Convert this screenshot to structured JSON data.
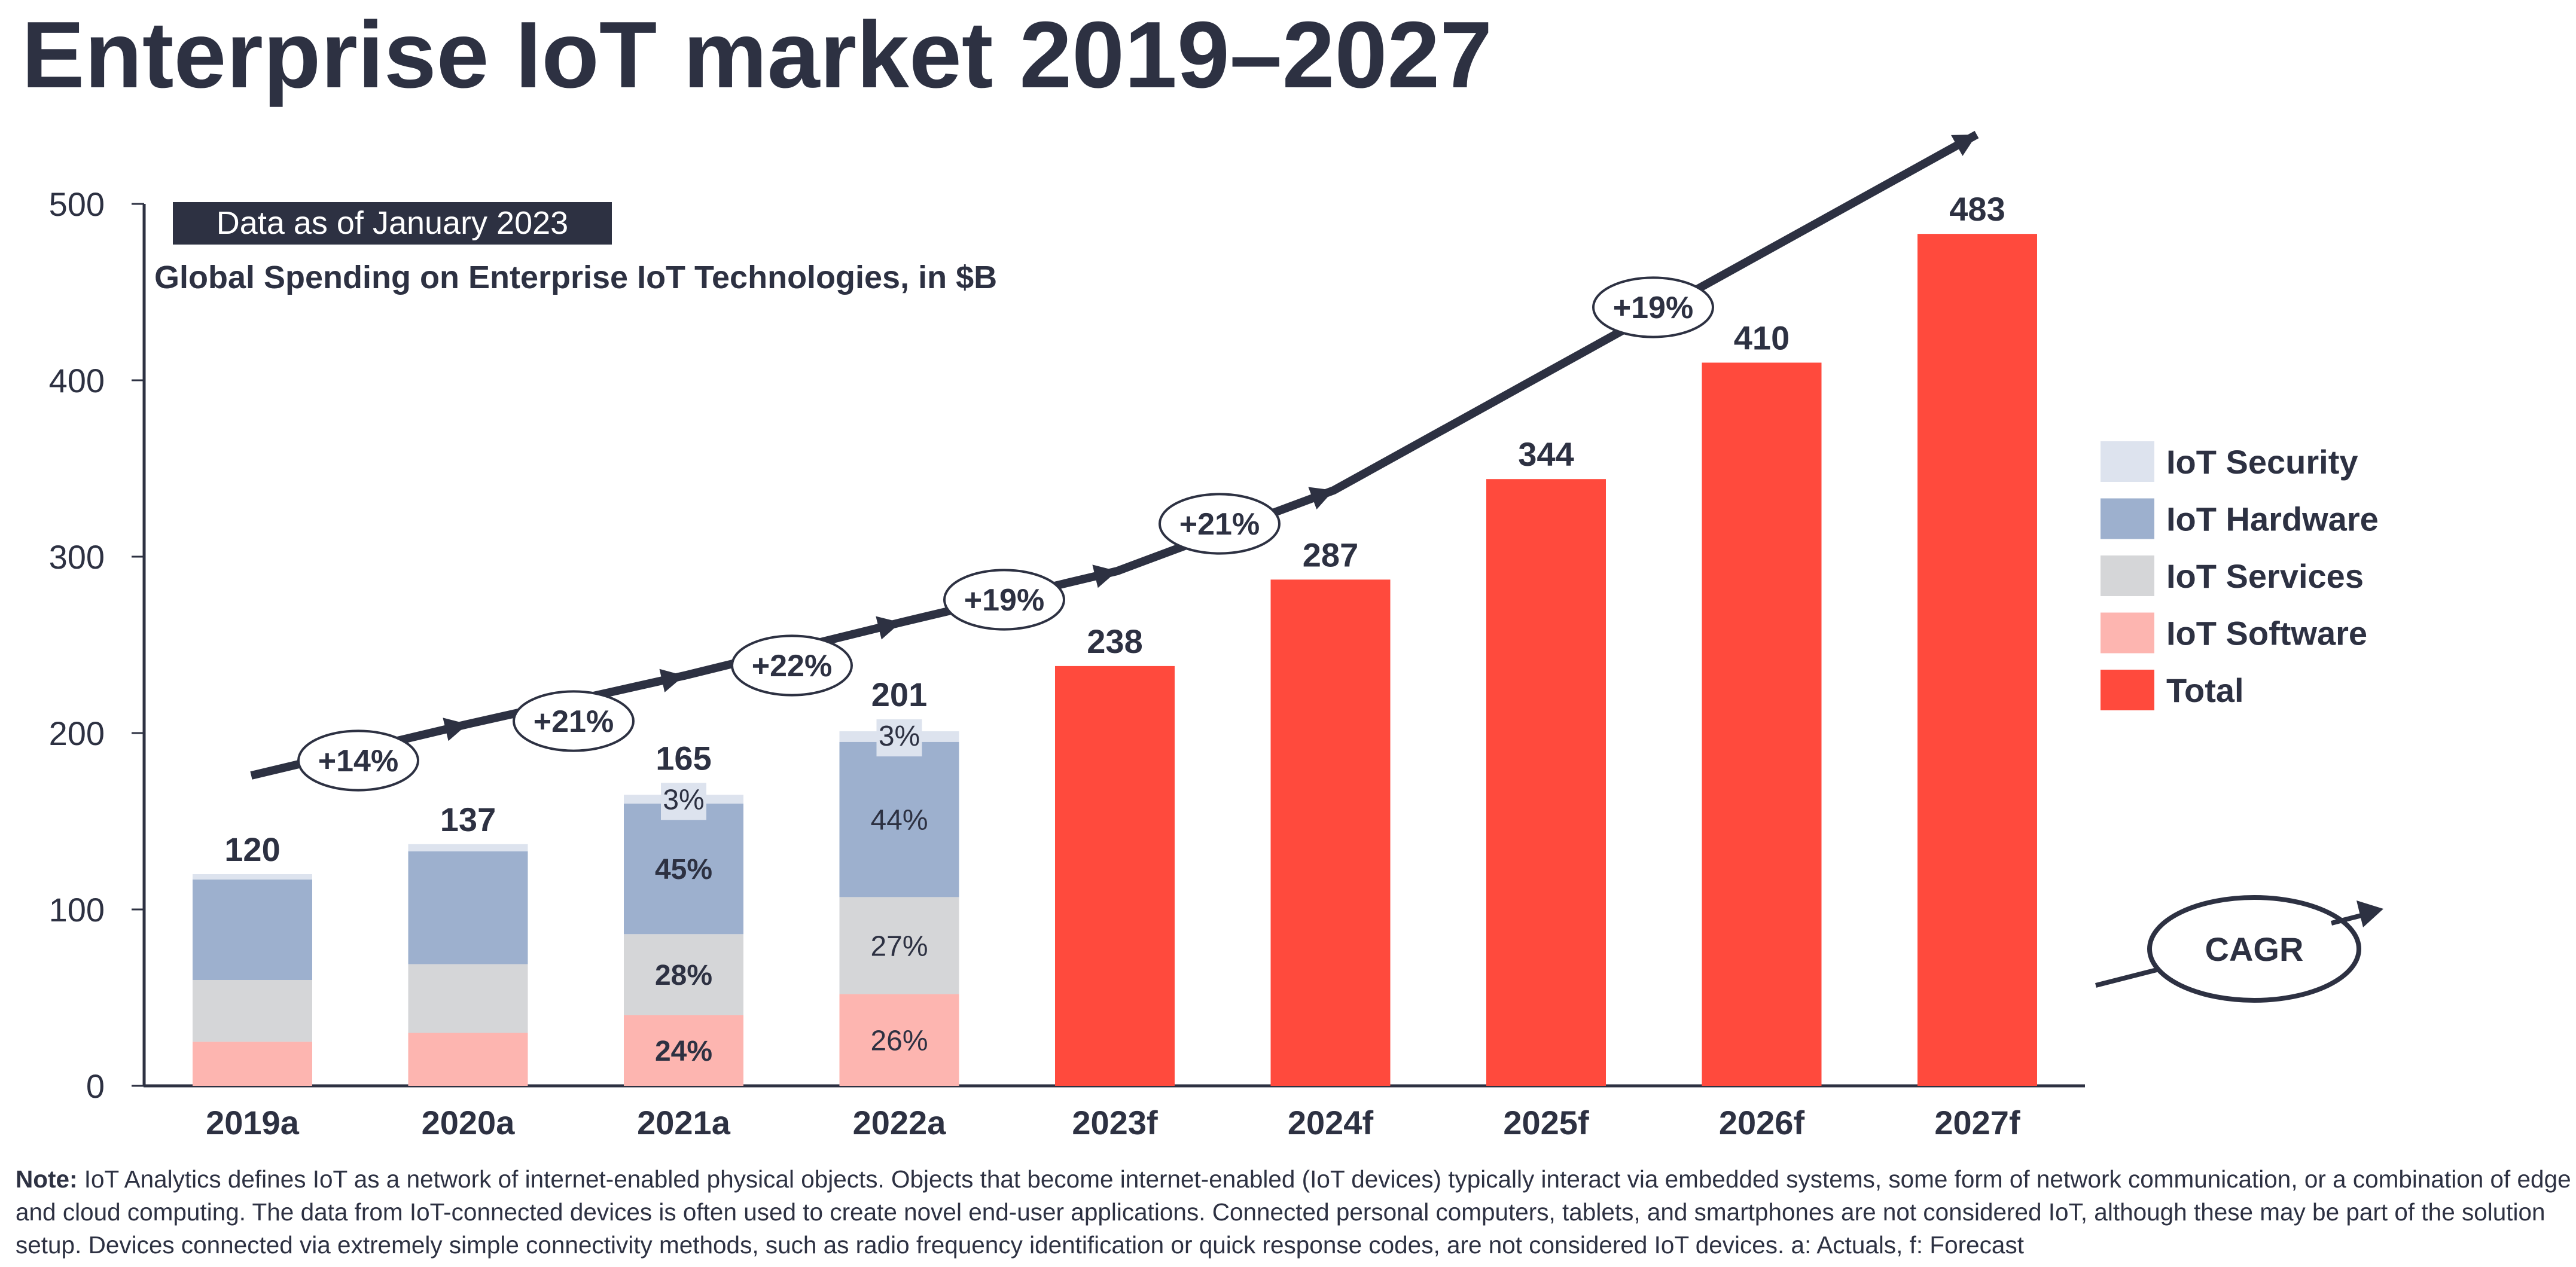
{
  "title": "Enterprise IoT market 2019–2027",
  "badge": "Data as of January 2023",
  "colors": {
    "text": "#2d3142",
    "security": "#dde3ee",
    "hardware": "#9db0ce",
    "services": "#d5d6d8",
    "software": "#fdb5b0",
    "total": "#ff4a3d"
  },
  "chart_data": {
    "type": "bar",
    "stacked": true,
    "title": "Global Spending on Enterprise IoT Technologies, in $B",
    "xlabel": "",
    "ylabel": "",
    "ylim": [
      0,
      500
    ],
    "yticks": [
      0,
      100,
      200,
      300,
      400,
      500
    ],
    "grid": false,
    "legend_position": "right",
    "categories": [
      "2019a",
      "2020a",
      "2021a",
      "2022a",
      "2023f",
      "2024f",
      "2025f",
      "2026f",
      "2027f"
    ],
    "totals": [
      120,
      137,
      165,
      201,
      238,
      287,
      344,
      410,
      483
    ],
    "series": [
      {
        "name": "IoT Software",
        "color_key": "software",
        "values": [
          25,
          30,
          40,
          52,
          null,
          null,
          null,
          null,
          null
        ],
        "labels": [
          null,
          null,
          "24%",
          "26%",
          null,
          null,
          null,
          null,
          null
        ]
      },
      {
        "name": "IoT Services",
        "color_key": "services",
        "values": [
          35,
          39,
          46,
          55,
          null,
          null,
          null,
          null,
          null
        ],
        "labels": [
          null,
          null,
          "28%",
          "27%",
          null,
          null,
          null,
          null,
          null
        ]
      },
      {
        "name": "IoT Hardware",
        "color_key": "hardware",
        "values": [
          57,
          64,
          74,
          88,
          null,
          null,
          null,
          null,
          null
        ],
        "labels": [
          null,
          null,
          "45%",
          "44%",
          null,
          null,
          null,
          null,
          null
        ]
      },
      {
        "name": "IoT Security",
        "color_key": "security",
        "values": [
          3,
          4,
          5,
          6,
          null,
          null,
          null,
          null,
          null
        ],
        "labels": [
          null,
          null,
          "3%",
          "3%",
          null,
          null,
          null,
          null,
          null
        ]
      },
      {
        "name": "Total",
        "color_key": "total",
        "values": [
          null,
          null,
          null,
          null,
          238,
          287,
          344,
          410,
          483
        ],
        "labels": []
      }
    ],
    "legend": [
      "IoT Security",
      "IoT Hardware",
      "IoT Services",
      "IoT Software",
      "Total"
    ],
    "growth_rates": [
      {
        "from": "2019a",
        "to": "2020a",
        "label": "+14%"
      },
      {
        "from": "2020a",
        "to": "2021a",
        "label": "+21%"
      },
      {
        "from": "2021a",
        "to": "2022a",
        "label": "+22%"
      },
      {
        "from": "2022a",
        "to": "2023f",
        "label": "+19%"
      },
      {
        "from": "2023f",
        "to": "2024f",
        "label": "+21%"
      },
      {
        "from": "2024f",
        "to": "2027f",
        "label": "+19%"
      }
    ],
    "cagr_label": "CAGR"
  },
  "note": {
    "label": "Note:",
    "text": "IoT Analytics defines IoT as a network of internet-enabled physical objects. Objects that become internet-enabled (IoT devices) typically interact via embedded systems, some form of network communication, or a combination of edge and cloud computing. The data from IoT-connected devices is often used to create novel end-user applications. Connected personal computers, tablets, and smartphones are not considered IoT, although these may be part of the solution setup. Devices connected via extremely simple connectivity methods, such as radio frequency identification or quick response codes, are not considered IoT devices. a: Actuals, f: Forecast"
  }
}
